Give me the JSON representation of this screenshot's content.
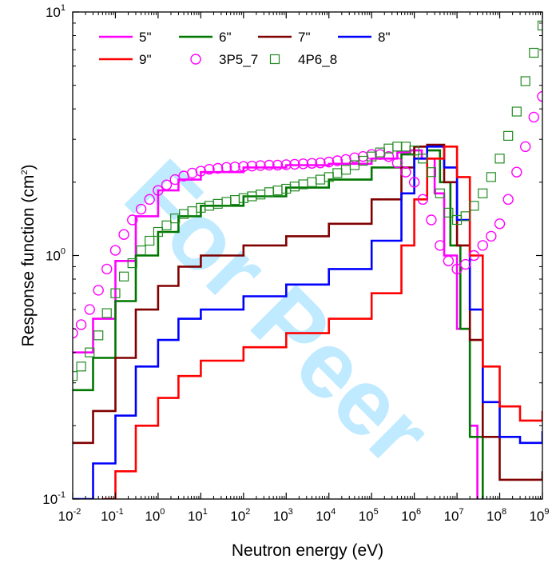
{
  "watermark_text": "For Peer",
  "chart_data": {
    "type": "line",
    "xlabel": "Neutron energy (eV)",
    "ylabel_main": "Response function (cm",
    "ylabel_sup": "2",
    "ylabel_tail": ")",
    "x_scale": "log",
    "y_scale": "log",
    "xlim": [
      0.01,
      1000000000
    ],
    "ylim": [
      0.1,
      10
    ],
    "x_ticks": [
      {
        "base": "10",
        "exp": "-2",
        "value": 0.01
      },
      {
        "base": "10",
        "exp": "-1",
        "value": 0.1
      },
      {
        "base": "10",
        "exp": "0",
        "value": 1
      },
      {
        "base": "10",
        "exp": "1",
        "value": 10
      },
      {
        "base": "10",
        "exp": "2",
        "value": 100
      },
      {
        "base": "10",
        "exp": "3",
        "value": 1000
      },
      {
        "base": "10",
        "exp": "4",
        "value": 10000
      },
      {
        "base": "10",
        "exp": "5",
        "value": 100000
      },
      {
        "base": "10",
        "exp": "6",
        "value": 1000000
      },
      {
        "base": "10",
        "exp": "7",
        "value": 10000000
      },
      {
        "base": "10",
        "exp": "8",
        "value": 100000000
      },
      {
        "base": "10",
        "exp": "9",
        "value": 1000000000
      }
    ],
    "y_ticks": [
      {
        "base": "10",
        "exp": "-1",
        "value": 0.1
      },
      {
        "base": "10",
        "exp": "0",
        "value": 1
      },
      {
        "base": "10",
        "exp": "1",
        "value": 10
      }
    ],
    "grid": false,
    "legend_position": "top-left",
    "series": [
      {
        "name": "5\"",
        "style": "step",
        "color": "#ff00ff",
        "points": [
          [
            0.01,
            0.4
          ],
          [
            0.03,
            0.55
          ],
          [
            0.1,
            0.95
          ],
          [
            0.3,
            1.45
          ],
          [
            1,
            1.85
          ],
          [
            3,
            2.05
          ],
          [
            10,
            2.2
          ],
          [
            100,
            2.3
          ],
          [
            1000,
            2.35
          ],
          [
            10000,
            2.38
          ],
          [
            100000,
            2.5
          ],
          [
            400000,
            2.65
          ],
          [
            800000,
            2.7
          ],
          [
            1500000,
            2.5
          ],
          [
            3000000,
            1.8
          ],
          [
            5000000,
            1.0
          ],
          [
            10000000,
            0.5
          ],
          [
            20000000,
            0.2
          ],
          [
            30000000,
            0.08
          ]
        ]
      },
      {
        "name": "6\"",
        "style": "step",
        "color": "#007700",
        "points": [
          [
            0.01,
            0.28
          ],
          [
            0.03,
            0.38
          ],
          [
            0.1,
            0.65
          ],
          [
            0.3,
            1.0
          ],
          [
            1,
            1.25
          ],
          [
            3,
            1.45
          ],
          [
            10,
            1.6
          ],
          [
            100,
            1.75
          ],
          [
            1000,
            1.9
          ],
          [
            10000,
            2.05
          ],
          [
            100000,
            2.3
          ],
          [
            500000,
            2.6
          ],
          [
            1000000,
            2.8
          ],
          [
            2000000,
            2.7
          ],
          [
            4000000,
            2.0
          ],
          [
            7000000,
            1.1
          ],
          [
            12000000,
            0.5
          ],
          [
            20000000,
            0.18
          ],
          [
            40000000,
            0.08
          ]
        ]
      },
      {
        "name": "7\"",
        "style": "step",
        "color": "#800000",
        "points": [
          [
            0.01,
            0.17
          ],
          [
            0.03,
            0.23
          ],
          [
            0.1,
            0.38
          ],
          [
            0.3,
            0.6
          ],
          [
            1,
            0.75
          ],
          [
            3,
            0.9
          ],
          [
            10,
            1.0
          ],
          [
            100,
            1.1
          ],
          [
            1000,
            1.2
          ],
          [
            10000,
            1.35
          ],
          [
            100000,
            1.7
          ],
          [
            500000,
            2.3
          ],
          [
            1000000,
            2.8
          ],
          [
            2000000,
            2.85
          ],
          [
            5000000,
            2.0
          ],
          [
            10000000,
            1.1
          ],
          [
            20000000,
            0.45
          ],
          [
            40000000,
            0.18
          ],
          [
            100000000,
            0.12
          ],
          [
            300000000,
            0.12
          ],
          [
            1000000000,
            0.13
          ]
        ]
      },
      {
        "name": "8\"",
        "style": "step",
        "color": "#0000ff",
        "points": [
          [
            0.01,
            0.1
          ],
          [
            0.03,
            0.14
          ],
          [
            0.1,
            0.22
          ],
          [
            0.3,
            0.35
          ],
          [
            1,
            0.45
          ],
          [
            3,
            0.55
          ],
          [
            10,
            0.6
          ],
          [
            100,
            0.68
          ],
          [
            1000,
            0.76
          ],
          [
            10000,
            0.88
          ],
          [
            100000,
            1.15
          ],
          [
            500000,
            1.8
          ],
          [
            1000000,
            2.5
          ],
          [
            2000000,
            2.8
          ],
          [
            5000000,
            2.3
          ],
          [
            10000000,
            1.4
          ],
          [
            20000000,
            0.6
          ],
          [
            40000000,
            0.25
          ],
          [
            100000000,
            0.18
          ],
          [
            300000000,
            0.17
          ],
          [
            1000000000,
            0.19
          ]
        ]
      },
      {
        "name": "9\"",
        "style": "step",
        "color": "#ff0000",
        "points": [
          [
            0.05,
            0.1
          ],
          [
            0.1,
            0.13
          ],
          [
            0.3,
            0.2
          ],
          [
            1,
            0.26
          ],
          [
            3,
            0.32
          ],
          [
            10,
            0.37
          ],
          [
            100,
            0.42
          ],
          [
            1000,
            0.48
          ],
          [
            10000,
            0.55
          ],
          [
            100000,
            0.7
          ],
          [
            500000,
            1.1
          ],
          [
            1000000,
            1.7
          ],
          [
            2000000,
            2.5
          ],
          [
            5000000,
            2.8
          ],
          [
            10000000,
            2.1
          ],
          [
            20000000,
            1.0
          ],
          [
            40000000,
            0.35
          ],
          [
            100000000,
            0.24
          ],
          [
            300000000,
            0.21
          ],
          [
            1000000000,
            0.23
          ]
        ]
      },
      {
        "name": "3P5_7",
        "style": "circle",
        "color": "#ff00ff",
        "points": [
          [
            0.01,
            0.48
          ],
          [
            0.0158,
            0.52
          ],
          [
            0.025,
            0.6
          ],
          [
            0.04,
            0.72
          ],
          [
            0.063,
            0.88
          ],
          [
            0.1,
            1.05
          ],
          [
            0.158,
            1.22
          ],
          [
            0.25,
            1.4
          ],
          [
            0.4,
            1.55
          ],
          [
            0.63,
            1.7
          ],
          [
            1,
            1.85
          ],
          [
            1.58,
            1.95
          ],
          [
            2.5,
            2.05
          ],
          [
            4,
            2.12
          ],
          [
            6.3,
            2.18
          ],
          [
            10,
            2.22
          ],
          [
            15.8,
            2.26
          ],
          [
            25,
            2.28
          ],
          [
            40,
            2.3
          ],
          [
            63,
            2.31
          ],
          [
            100,
            2.32
          ],
          [
            158,
            2.33
          ],
          [
            250,
            2.34
          ],
          [
            400,
            2.35
          ],
          [
            630,
            2.35
          ],
          [
            1000,
            2.36
          ],
          [
            1580,
            2.37
          ],
          [
            2500,
            2.38
          ],
          [
            4000,
            2.39
          ],
          [
            6300,
            2.4
          ],
          [
            10000,
            2.42
          ],
          [
            15800,
            2.45
          ],
          [
            25000,
            2.48
          ],
          [
            40000,
            2.52
          ],
          [
            63000,
            2.55
          ],
          [
            100000,
            2.6
          ],
          [
            158000,
            2.6
          ],
          [
            250000,
            2.55
          ],
          [
            400000,
            2.4
          ],
          [
            630000,
            2.2
          ],
          [
            1000000,
            2.0
          ],
          [
            1580000,
            1.7
          ],
          [
            2500000,
            1.4
          ],
          [
            4000000,
            1.1
          ],
          [
            6300000,
            0.95
          ],
          [
            10000000,
            0.88
          ],
          [
            15800000,
            0.92
          ],
          [
            25000000,
            1.0
          ],
          [
            40000000,
            1.1
          ],
          [
            63000000,
            1.2
          ],
          [
            100000000,
            1.35
          ],
          [
            158000000,
            1.7
          ],
          [
            250000000,
            2.2
          ],
          [
            400000000,
            2.8
          ],
          [
            630000000,
            3.7
          ],
          [
            1000000000,
            4.5
          ]
        ]
      },
      {
        "name": "4P6_8",
        "style": "square",
        "color": "#228b22",
        "points": [
          [
            0.01,
            0.32
          ],
          [
            0.0158,
            0.35
          ],
          [
            0.025,
            0.4
          ],
          [
            0.04,
            0.47
          ],
          [
            0.063,
            0.58
          ],
          [
            0.1,
            0.7
          ],
          [
            0.158,
            0.82
          ],
          [
            0.25,
            0.93
          ],
          [
            0.4,
            1.05
          ],
          [
            0.63,
            1.15
          ],
          [
            1,
            1.25
          ],
          [
            1.58,
            1.33
          ],
          [
            2.5,
            1.42
          ],
          [
            4,
            1.48
          ],
          [
            6.3,
            1.52
          ],
          [
            10,
            1.57
          ],
          [
            15.8,
            1.6
          ],
          [
            25,
            1.63
          ],
          [
            40,
            1.66
          ],
          [
            63,
            1.69
          ],
          [
            100,
            1.72
          ],
          [
            158,
            1.75
          ],
          [
            250,
            1.78
          ],
          [
            400,
            1.82
          ],
          [
            630,
            1.85
          ],
          [
            1000,
            1.88
          ],
          [
            1580,
            1.92
          ],
          [
            2500,
            1.96
          ],
          [
            4000,
            2.0
          ],
          [
            6300,
            2.05
          ],
          [
            10000,
            2.1
          ],
          [
            15800,
            2.18
          ],
          [
            25000,
            2.25
          ],
          [
            40000,
            2.35
          ],
          [
            63000,
            2.45
          ],
          [
            100000,
            2.55
          ],
          [
            158000,
            2.65
          ],
          [
            250000,
            2.75
          ],
          [
            400000,
            2.8
          ],
          [
            630000,
            2.8
          ],
          [
            1000000,
            2.7
          ],
          [
            1580000,
            2.5
          ],
          [
            2500000,
            2.2
          ],
          [
            4000000,
            1.8
          ],
          [
            6300000,
            1.5
          ],
          [
            10000000,
            1.4
          ],
          [
            15800000,
            1.45
          ],
          [
            25000000,
            1.6
          ],
          [
            40000000,
            1.8
          ],
          [
            63000000,
            2.1
          ],
          [
            100000000,
            2.5
          ],
          [
            158000000,
            3.1
          ],
          [
            250000000,
            3.9
          ],
          [
            400000000,
            5.2
          ],
          [
            630000000,
            6.8
          ],
          [
            1000000000,
            8.8
          ]
        ]
      }
    ]
  }
}
